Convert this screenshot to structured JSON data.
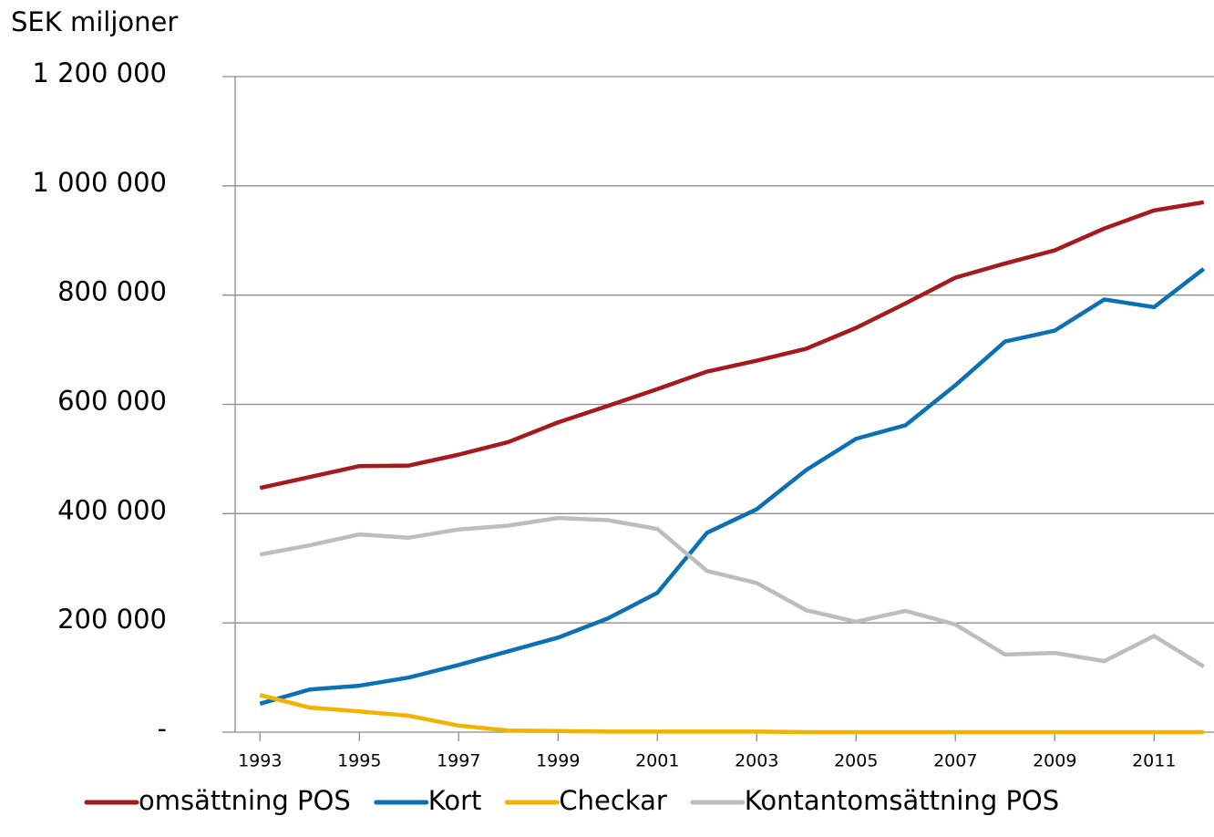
{
  "chart_data": {
    "type": "line",
    "y_label": "SEK miljoner",
    "x": [
      1993,
      1994,
      1995,
      1996,
      1997,
      1998,
      1999,
      2000,
      2001,
      2002,
      2003,
      2004,
      2005,
      2006,
      2007,
      2008,
      2009,
      2010,
      2011,
      2012
    ],
    "xlim": [
      1992.5,
      2012.5
    ],
    "xticks": [
      1993,
      1995,
      1997,
      1999,
      2001,
      2003,
      2005,
      2007,
      2009,
      2011
    ],
    "ylim": [
      0,
      1200000
    ],
    "yticks": [
      {
        "value": 0,
        "label": "-"
      },
      {
        "value": 200000,
        "label": "200 000"
      },
      {
        "value": 400000,
        "label": "400 000"
      },
      {
        "value": 600000,
        "label": "600 000"
      },
      {
        "value": 800000,
        "label": "800 000"
      },
      {
        "value": 1000000,
        "label": "1 000 000"
      },
      {
        "value": 1200000,
        "label": "1 200 000"
      }
    ],
    "grid": true,
    "legend": "bottom",
    "series": [
      {
        "name": "omsättning POS",
        "color": "#a6191f",
        "values": [
          447000,
          467000,
          487000,
          488000,
          508000,
          531000,
          567000,
          597000,
          628000,
          660000,
          680000,
          702000,
          740000,
          785000,
          832000,
          858000,
          882000,
          922000,
          955000,
          970000
        ]
      },
      {
        "name": "Kort",
        "color": "#0c70b5",
        "values": [
          52000,
          78000,
          85000,
          100000,
          123000,
          148000,
          173000,
          208000,
          255000,
          365000,
          408000,
          480000,
          537000,
          562000,
          635000,
          715000,
          735000,
          792000,
          778000,
          848000
        ]
      },
      {
        "name": "Checkar",
        "color": "#f2b300",
        "values": [
          68000,
          45000,
          38000,
          30000,
          12000,
          3000,
          2000,
          1000,
          1000,
          1000,
          1000,
          0,
          0,
          0,
          0,
          0,
          0,
          0,
          0,
          0
        ]
      },
      {
        "name": "Kontantomsättning POS",
        "color": "#bdbdbd",
        "values": [
          325000,
          342000,
          362000,
          356000,
          371000,
          378000,
          392000,
          388000,
          372000,
          295000,
          273000,
          223000,
          202000,
          222000,
          197000,
          142000,
          145000,
          130000,
          176000,
          120000
        ]
      }
    ]
  }
}
